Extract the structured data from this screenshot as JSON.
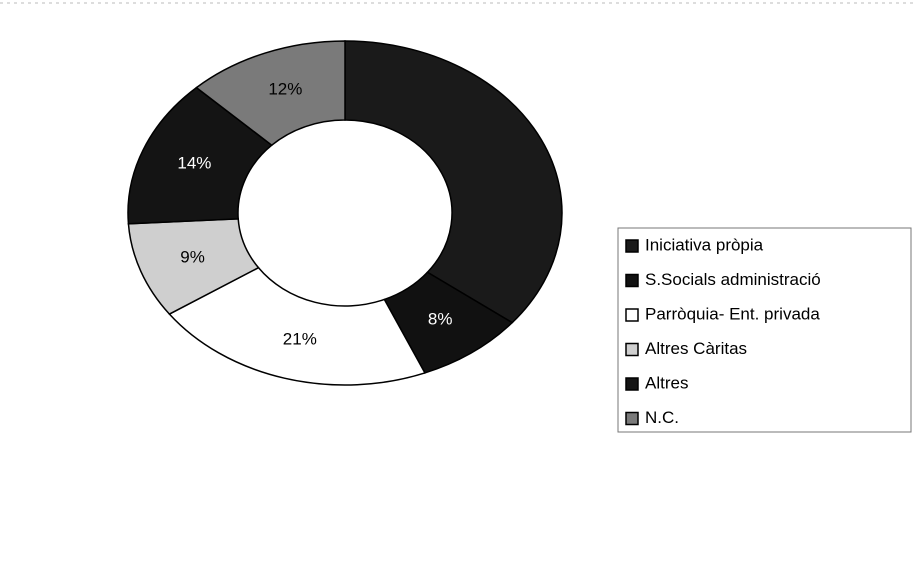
{
  "chart_data": {
    "type": "donut",
    "categories": [
      "Iniciativa pròpia",
      "S.Socials administració",
      "Parròquia- Ent. privada",
      "Altres Càritas",
      "Altres",
      "N.C."
    ],
    "values": [
      36,
      8,
      21,
      9,
      14,
      12
    ],
    "value_labels": [
      null,
      "8%",
      "21%",
      "9%",
      "14%",
      "12%"
    ],
    "colors": [
      "#1a1a1a",
      "#111111",
      "#ffffff",
      "#cfcfcf",
      "#141414",
      "#7a7a7a"
    ],
    "legend": "right"
  }
}
